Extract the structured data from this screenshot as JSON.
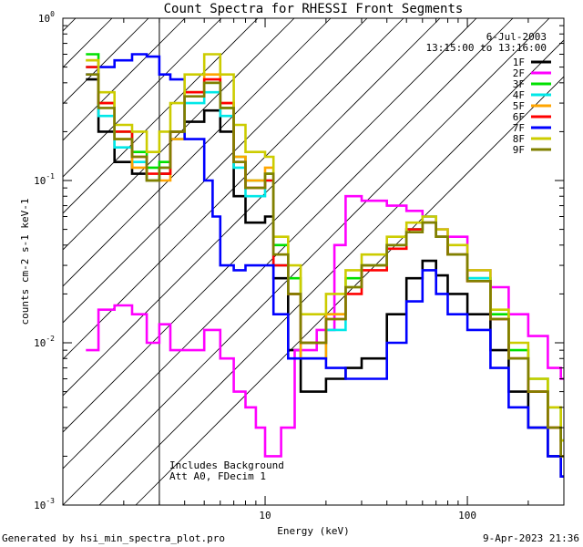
{
  "chart_data": {
    "type": "line",
    "title": "Count Spectra for RHESSI Front Segments",
    "xlabel": "Energy (keV)",
    "ylabel": "counts cm-2 s-1 keV-1",
    "xscale": "log",
    "yscale": "log",
    "xlim": [
      1.0,
      300.0
    ],
    "ylim": [
      0.001,
      1.0
    ],
    "x_ticks": [
      {
        "value": 10,
        "label": "10"
      },
      {
        "value": 100,
        "label": "100"
      }
    ],
    "y_ticks": [
      {
        "value": 1,
        "base": "10",
        "exp": "0"
      },
      {
        "value": 0.1,
        "base": "10",
        "exp": "-1"
      },
      {
        "value": 0.01,
        "base": "10",
        "exp": "-2"
      },
      {
        "value": 0.001,
        "base": "10",
        "exp": "-3"
      }
    ],
    "date": "6-Jul-2003",
    "time_range": "13:15:00 to 13:16:00",
    "annotations": [
      "Includes Background",
      "Att A0, FDecim 1"
    ],
    "shaded_region": {
      "xmin": 1.0,
      "xmax": 3.0,
      "note": "hatched"
    },
    "series": [
      {
        "name": "1F",
        "color": "#000000",
        "points": [
          [
            1.3,
            0.42
          ],
          [
            1.5,
            0.2
          ],
          [
            1.8,
            0.13
          ],
          [
            2.2,
            0.11
          ],
          [
            2.6,
            0.1
          ],
          [
            3.0,
            0.11
          ],
          [
            3.4,
            0.2
          ],
          [
            4.0,
            0.23
          ],
          [
            5.0,
            0.27
          ],
          [
            6.0,
            0.2
          ],
          [
            7.0,
            0.08
          ],
          [
            8.0,
            0.055
          ],
          [
            10.0,
            0.06
          ],
          [
            11.0,
            0.025
          ],
          [
            13.0,
            0.009
          ],
          [
            15.0,
            0.005
          ],
          [
            20.0,
            0.006
          ],
          [
            25.0,
            0.007
          ],
          [
            30.0,
            0.008
          ],
          [
            40.0,
            0.015
          ],
          [
            50.0,
            0.025
          ],
          [
            60.0,
            0.032
          ],
          [
            70.0,
            0.026
          ],
          [
            80.0,
            0.02
          ],
          [
            100.0,
            0.015
          ],
          [
            130.0,
            0.009
          ],
          [
            160.0,
            0.005
          ],
          [
            200.0,
            0.003
          ],
          [
            250.0,
            0.002
          ],
          [
            290.0,
            0.0015
          ]
        ]
      },
      {
        "name": "2F",
        "color": "#ff00ff",
        "points": [
          [
            1.3,
            0.009
          ],
          [
            1.5,
            0.016
          ],
          [
            1.8,
            0.017
          ],
          [
            2.2,
            0.015
          ],
          [
            2.6,
            0.01
          ],
          [
            3.0,
            0.013
          ],
          [
            3.4,
            0.009
          ],
          [
            4.0,
            0.009
          ],
          [
            5.0,
            0.012
          ],
          [
            6.0,
            0.008
          ],
          [
            7.0,
            0.005
          ],
          [
            8.0,
            0.004
          ],
          [
            9.0,
            0.003
          ],
          [
            10.0,
            0.002
          ],
          [
            12.0,
            0.003
          ],
          [
            14.0,
            0.009
          ],
          [
            18.0,
            0.012
          ],
          [
            22.0,
            0.04
          ],
          [
            25.0,
            0.08
          ],
          [
            30.0,
            0.075
          ],
          [
            40.0,
            0.07
          ],
          [
            50.0,
            0.065
          ],
          [
            60.0,
            0.06
          ],
          [
            70.0,
            0.05
          ],
          [
            80.0,
            0.045
          ],
          [
            100.0,
            0.028
          ],
          [
            130.0,
            0.022
          ],
          [
            160.0,
            0.015
          ],
          [
            200.0,
            0.011
          ],
          [
            250.0,
            0.007
          ],
          [
            290.0,
            0.006
          ]
        ]
      },
      {
        "name": "3F",
        "color": "#00e000",
        "points": [
          [
            1.3,
            0.6
          ],
          [
            1.5,
            0.3
          ],
          [
            1.8,
            0.2
          ],
          [
            2.2,
            0.15
          ],
          [
            2.6,
            0.12
          ],
          [
            3.0,
            0.13
          ],
          [
            3.4,
            0.2
          ],
          [
            4.0,
            0.35
          ],
          [
            5.0,
            0.4
          ],
          [
            6.0,
            0.28
          ],
          [
            7.0,
            0.14
          ],
          [
            8.0,
            0.1
          ],
          [
            10.0,
            0.11
          ],
          [
            11.0,
            0.04
          ],
          [
            13.0,
            0.025
          ],
          [
            15.0,
            0.01
          ],
          [
            20.0,
            0.015
          ],
          [
            25.0,
            0.025
          ],
          [
            30.0,
            0.03
          ],
          [
            40.0,
            0.04
          ],
          [
            50.0,
            0.05
          ],
          [
            60.0,
            0.055
          ],
          [
            70.0,
            0.045
          ],
          [
            80.0,
            0.035
          ],
          [
            100.0,
            0.025
          ],
          [
            130.0,
            0.015
          ],
          [
            160.0,
            0.009
          ],
          [
            200.0,
            0.006
          ],
          [
            250.0,
            0.004
          ],
          [
            290.0,
            0.0025
          ]
        ]
      },
      {
        "name": "4F",
        "color": "#00e8e8",
        "points": [
          [
            1.3,
            0.5
          ],
          [
            1.5,
            0.25
          ],
          [
            1.8,
            0.16
          ],
          [
            2.2,
            0.13
          ],
          [
            2.6,
            0.1
          ],
          [
            3.0,
            0.12
          ],
          [
            3.4,
            0.18
          ],
          [
            4.0,
            0.3
          ],
          [
            5.0,
            0.35
          ],
          [
            6.0,
            0.25
          ],
          [
            7.0,
            0.12
          ],
          [
            8.0,
            0.08
          ],
          [
            10.0,
            0.1
          ],
          [
            11.0,
            0.03
          ],
          [
            13.0,
            0.02
          ],
          [
            15.0,
            0.008
          ],
          [
            20.0,
            0.012
          ],
          [
            25.0,
            0.022
          ],
          [
            30.0,
            0.03
          ],
          [
            40.0,
            0.04
          ],
          [
            50.0,
            0.05
          ],
          [
            60.0,
            0.06
          ],
          [
            70.0,
            0.045
          ],
          [
            80.0,
            0.035
          ],
          [
            100.0,
            0.025
          ],
          [
            130.0,
            0.014
          ],
          [
            160.0,
            0.008
          ],
          [
            200.0,
            0.005
          ],
          [
            250.0,
            0.003
          ],
          [
            290.0,
            0.002
          ]
        ]
      },
      {
        "name": "5F",
        "color": "#ffa500",
        "points": [
          [
            1.3,
            0.55
          ],
          [
            1.5,
            0.3
          ],
          [
            1.8,
            0.18
          ],
          [
            2.2,
            0.12
          ],
          [
            2.6,
            0.1
          ],
          [
            3.0,
            0.1
          ],
          [
            3.4,
            0.18
          ],
          [
            4.0,
            0.35
          ],
          [
            5.0,
            0.45
          ],
          [
            6.0,
            0.3
          ],
          [
            7.0,
            0.14
          ],
          [
            8.0,
            0.1
          ],
          [
            10.0,
            0.12
          ],
          [
            11.0,
            0.035
          ],
          [
            13.0,
            0.02
          ],
          [
            15.0,
            0.008
          ],
          [
            20.0,
            0.015
          ],
          [
            25.0,
            0.022
          ],
          [
            30.0,
            0.03
          ],
          [
            40.0,
            0.04
          ],
          [
            50.0,
            0.048
          ],
          [
            60.0,
            0.055
          ],
          [
            70.0,
            0.045
          ],
          [
            80.0,
            0.035
          ],
          [
            100.0,
            0.024
          ],
          [
            130.0,
            0.014
          ],
          [
            160.0,
            0.008
          ],
          [
            200.0,
            0.005
          ],
          [
            250.0,
            0.003
          ],
          [
            290.0,
            0.002
          ]
        ]
      },
      {
        "name": "6F",
        "color": "#ff0000",
        "points": [
          [
            1.3,
            0.5
          ],
          [
            1.5,
            0.3
          ],
          [
            1.8,
            0.2
          ],
          [
            2.2,
            0.14
          ],
          [
            2.6,
            0.11
          ],
          [
            3.0,
            0.11
          ],
          [
            3.4,
            0.2
          ],
          [
            4.0,
            0.35
          ],
          [
            5.0,
            0.42
          ],
          [
            6.0,
            0.3
          ],
          [
            7.0,
            0.13
          ],
          [
            8.0,
            0.09
          ],
          [
            10.0,
            0.1
          ],
          [
            11.0,
            0.03
          ],
          [
            13.0,
            0.02
          ],
          [
            15.0,
            0.01
          ],
          [
            20.0,
            0.014
          ],
          [
            25.0,
            0.02
          ],
          [
            30.0,
            0.028
          ],
          [
            40.0,
            0.038
          ],
          [
            50.0,
            0.05
          ],
          [
            60.0,
            0.055
          ],
          [
            70.0,
            0.045
          ],
          [
            80.0,
            0.035
          ],
          [
            100.0,
            0.024
          ],
          [
            130.0,
            0.014
          ],
          [
            160.0,
            0.008
          ],
          [
            200.0,
            0.005
          ],
          [
            250.0,
            0.003
          ],
          [
            290.0,
            0.002
          ]
        ]
      },
      {
        "name": "7F",
        "color": "#0000ff",
        "points": [
          [
            1.3,
            0.45
          ],
          [
            1.5,
            0.5
          ],
          [
            1.8,
            0.55
          ],
          [
            2.2,
            0.6
          ],
          [
            2.6,
            0.58
          ],
          [
            3.0,
            0.45
          ],
          [
            3.4,
            0.42
          ],
          [
            4.0,
            0.18
          ],
          [
            5.0,
            0.1
          ],
          [
            5.5,
            0.06
          ],
          [
            6.0,
            0.03
          ],
          [
            7.0,
            0.028
          ],
          [
            8.0,
            0.03
          ],
          [
            10.0,
            0.03
          ],
          [
            11.0,
            0.015
          ],
          [
            13.0,
            0.008
          ],
          [
            15.0,
            0.008
          ],
          [
            20.0,
            0.007
          ],
          [
            25.0,
            0.006
          ],
          [
            30.0,
            0.006
          ],
          [
            40.0,
            0.01
          ],
          [
            50.0,
            0.018
          ],
          [
            60.0,
            0.028
          ],
          [
            70.0,
            0.02
          ],
          [
            80.0,
            0.015
          ],
          [
            100.0,
            0.012
          ],
          [
            130.0,
            0.007
          ],
          [
            160.0,
            0.004
          ],
          [
            200.0,
            0.003
          ],
          [
            250.0,
            0.002
          ],
          [
            290.0,
            0.0015
          ]
        ]
      },
      {
        "name": "8F",
        "color": "#cccc00",
        "points": [
          [
            1.3,
            0.55
          ],
          [
            1.5,
            0.35
          ],
          [
            1.8,
            0.22
          ],
          [
            2.2,
            0.2
          ],
          [
            2.6,
            0.15
          ],
          [
            3.0,
            0.2
          ],
          [
            3.4,
            0.3
          ],
          [
            4.0,
            0.45
          ],
          [
            5.0,
            0.6
          ],
          [
            6.0,
            0.45
          ],
          [
            7.0,
            0.22
          ],
          [
            8.0,
            0.15
          ],
          [
            10.0,
            0.14
          ],
          [
            11.0,
            0.045
          ],
          [
            13.0,
            0.03
          ],
          [
            15.0,
            0.015
          ],
          [
            20.0,
            0.02
          ],
          [
            25.0,
            0.028
          ],
          [
            30.0,
            0.035
          ],
          [
            40.0,
            0.045
          ],
          [
            50.0,
            0.055
          ],
          [
            60.0,
            0.06
          ],
          [
            70.0,
            0.05
          ],
          [
            80.0,
            0.04
          ],
          [
            100.0,
            0.028
          ],
          [
            130.0,
            0.016
          ],
          [
            160.0,
            0.01
          ],
          [
            200.0,
            0.006
          ],
          [
            250.0,
            0.004
          ],
          [
            290.0,
            0.0025
          ]
        ]
      },
      {
        "name": "9F",
        "color": "#808000",
        "points": [
          [
            1.3,
            0.45
          ],
          [
            1.5,
            0.28
          ],
          [
            1.8,
            0.18
          ],
          [
            2.2,
            0.14
          ],
          [
            2.6,
            0.1
          ],
          [
            3.0,
            0.12
          ],
          [
            3.4,
            0.2
          ],
          [
            4.0,
            0.33
          ],
          [
            5.0,
            0.4
          ],
          [
            6.0,
            0.28
          ],
          [
            7.0,
            0.13
          ],
          [
            8.0,
            0.09
          ],
          [
            10.0,
            0.11
          ],
          [
            11.0,
            0.035
          ],
          [
            13.0,
            0.02
          ],
          [
            15.0,
            0.01
          ],
          [
            20.0,
            0.014
          ],
          [
            25.0,
            0.022
          ],
          [
            30.0,
            0.03
          ],
          [
            40.0,
            0.04
          ],
          [
            50.0,
            0.048
          ],
          [
            60.0,
            0.055
          ],
          [
            70.0,
            0.045
          ],
          [
            80.0,
            0.035
          ],
          [
            100.0,
            0.024
          ],
          [
            130.0,
            0.014
          ],
          [
            160.0,
            0.008
          ],
          [
            200.0,
            0.005
          ],
          [
            250.0,
            0.003
          ],
          [
            290.0,
            0.002
          ]
        ]
      }
    ]
  },
  "footer": {
    "generated_by": "Generated by hsi_min_spectra_plot.pro",
    "timestamp": "9-Apr-2023 21:36"
  }
}
